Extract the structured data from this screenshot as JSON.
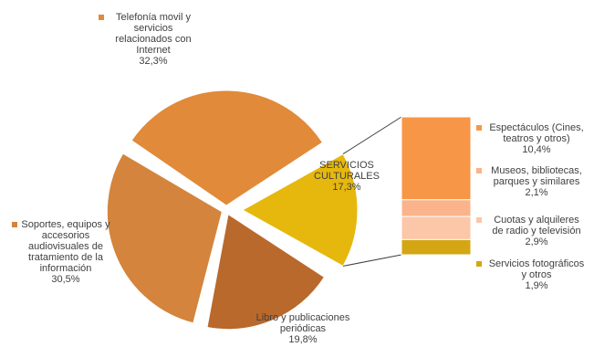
{
  "chart_data": {
    "type": "pie",
    "pie": {
      "slices": [
        {
          "lines": [
            "Telefonía movil y",
            "servicios",
            "relacionados con",
            "Internet"
          ],
          "value": 32.3,
          "value_label": "32,3%",
          "color": "#E08A3A"
        },
        {
          "lines": [
            "SERVICIOS",
            "CULTURALES"
          ],
          "value": 17.3,
          "value_label": "17,3%",
          "color": "#E6B80D",
          "exploded": true
        },
        {
          "lines": [
            "Libro y publicaciones",
            "periódicas"
          ],
          "value": 19.8,
          "value_label": "19,8%",
          "color": "#B9692C"
        },
        {
          "lines": [
            "Soportes, equipos y",
            "accesorios",
            "audiovisuales de",
            "tratamiento de la",
            "información"
          ],
          "value": 30.5,
          "value_label": "30,5%",
          "color": "#D4843C"
        }
      ]
    },
    "breakdown": {
      "type": "stacked-bar",
      "segments": [
        {
          "lines": [
            "Espectáculos (Cines,",
            "teatros y otros)"
          ],
          "value": 10.4,
          "value_label": "10,4%",
          "color": "#F79646"
        },
        {
          "lines": [
            "Museos, bibliotecas,",
            "parques y similares"
          ],
          "value": 2.1,
          "value_label": "2,1%",
          "color": "#FAB38A"
        },
        {
          "lines": [
            "Cuotas y alquileres",
            "de radio y televisión"
          ],
          "value": 2.9,
          "value_label": "2,9%",
          "color": "#FCC6A8"
        },
        {
          "lines": [
            "Servicios fotográficos",
            "y otros"
          ],
          "value": 1.9,
          "value_label": "1,9%",
          "color": "#D4A614"
        }
      ]
    }
  }
}
